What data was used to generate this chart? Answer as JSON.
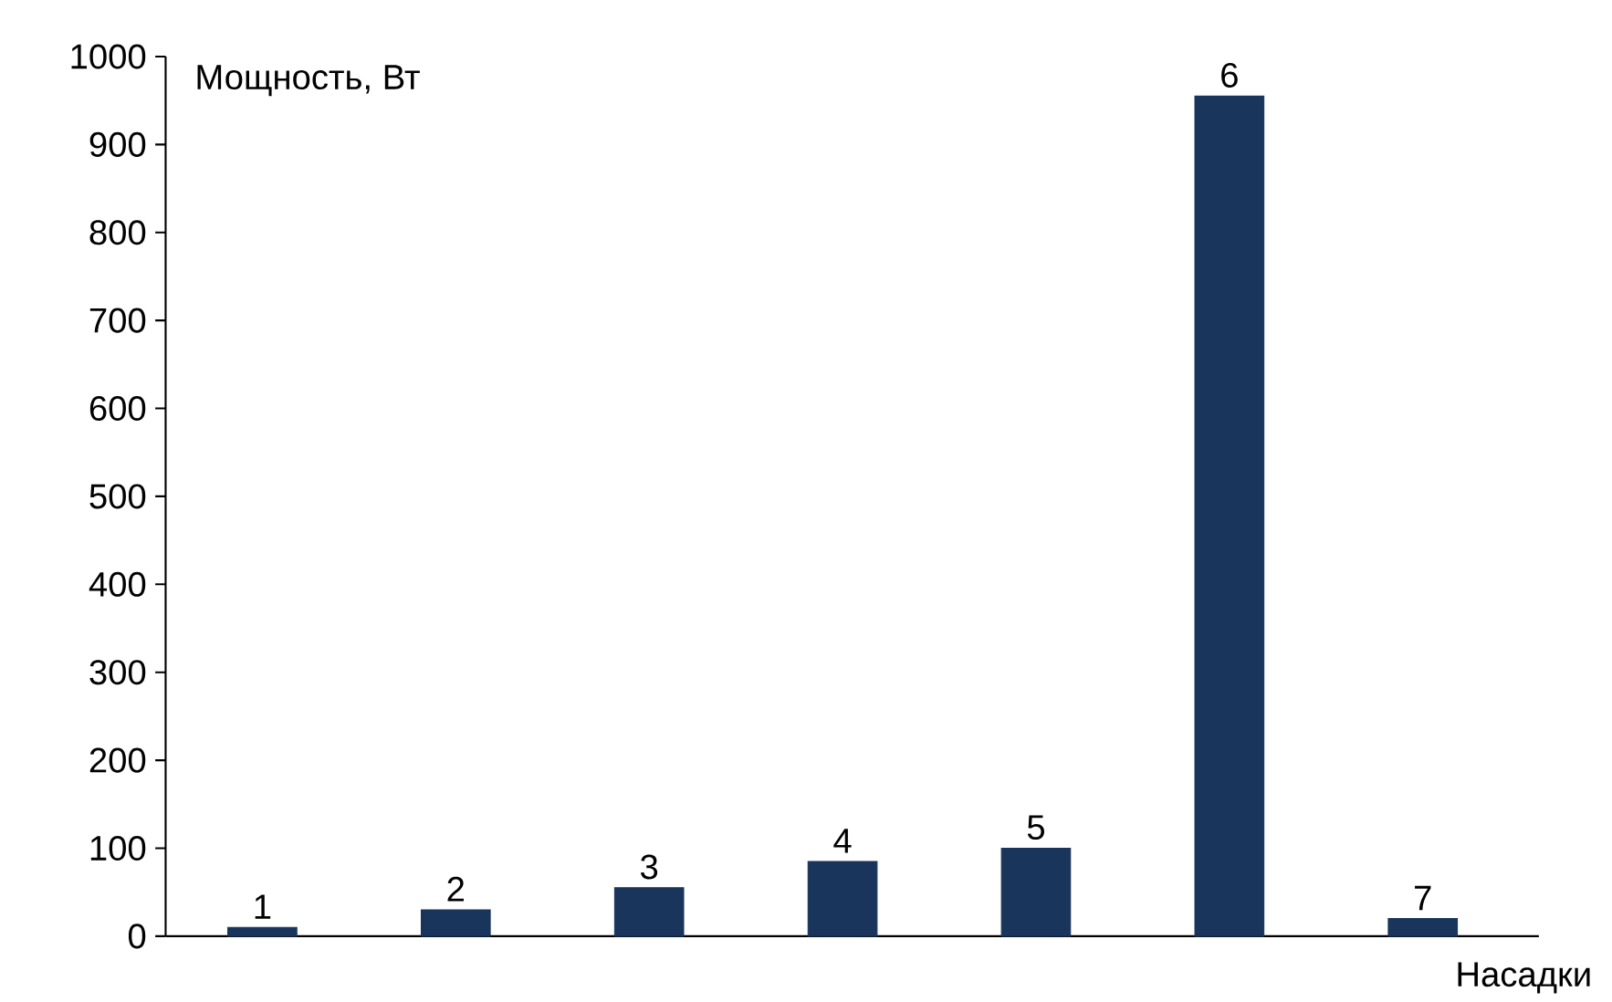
{
  "chart_data": {
    "type": "bar",
    "xlabel": "Насадки",
    "ylabel": "Мощность, Вт",
    "categories": [
      "1",
      "2",
      "3",
      "4",
      "5",
      "6",
      "7"
    ],
    "values": [
      10,
      30,
      55,
      85,
      100,
      955,
      20
    ],
    "color": "#1a355b",
    "ylim": [
      0,
      1000
    ],
    "yticks": [
      0,
      100,
      200,
      300,
      400,
      500,
      600,
      700,
      800,
      900,
      1000
    ],
    "grid": false
  }
}
